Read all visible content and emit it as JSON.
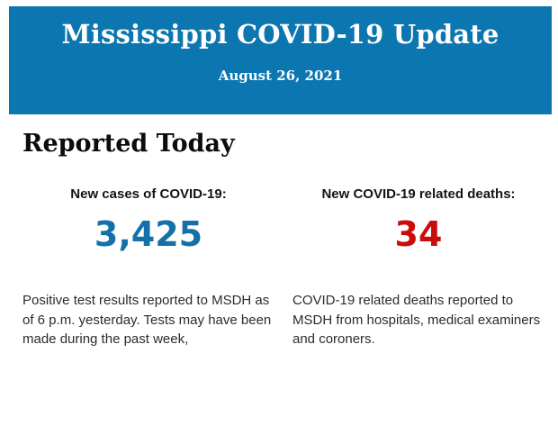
{
  "header": {
    "title": "Mississippi COVID-19 Update",
    "date": "August 26, 2021",
    "background_color": "#0b76b0",
    "text_color": "#ffffff"
  },
  "main": {
    "heading": "Reported Today",
    "stats": [
      {
        "label": "New cases of COVID-19:",
        "value": "3,425",
        "value_color": "#1470a8",
        "description": "Positive test results reported to MSDH as of 6 p.m. yesterday. Tests may have been made during the past week,"
      },
      {
        "label": "New COVID-19 related deaths:",
        "value": "34",
        "value_color": "#cb0c0c",
        "description": "COVID-19 related deaths reported to MSDH from hospitals, medical examiners and coroners."
      }
    ]
  }
}
